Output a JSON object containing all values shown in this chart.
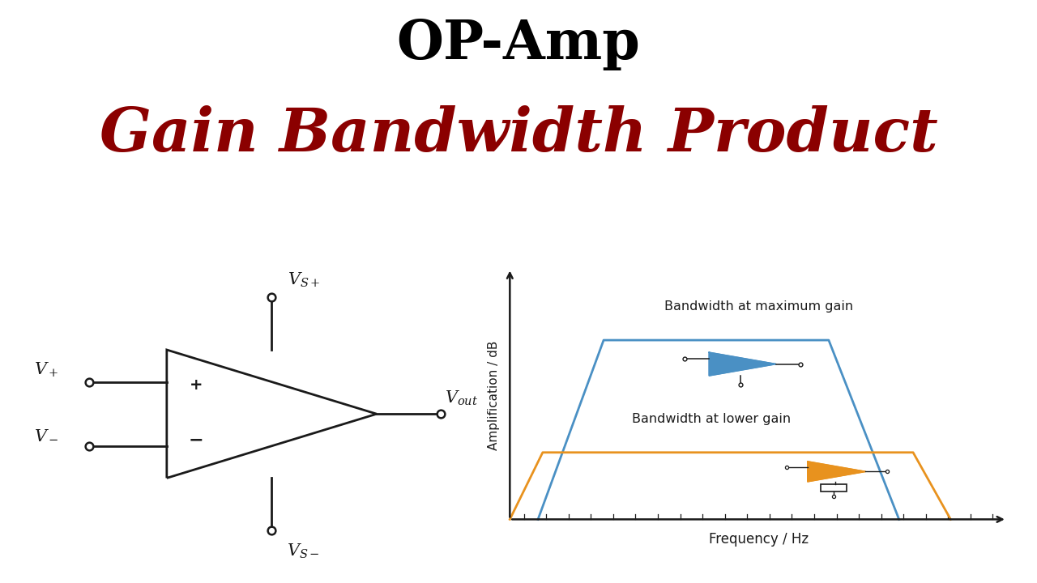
{
  "title_line1": "OP-Amp",
  "title_line2": "Gain Bandwidth Product",
  "title_line1_color": "#000000",
  "title_line2_color": "#8B0000",
  "bg_color": "#FFFFFF",
  "chart_blue_color": "#4A90C4",
  "chart_orange_color": "#E8921E",
  "xlabel": "Frequency / Hz",
  "ylabel": "Amplification / dB",
  "label_high": "Bandwidth at maximum gain",
  "label_low": "Bandwidth at lower gain"
}
